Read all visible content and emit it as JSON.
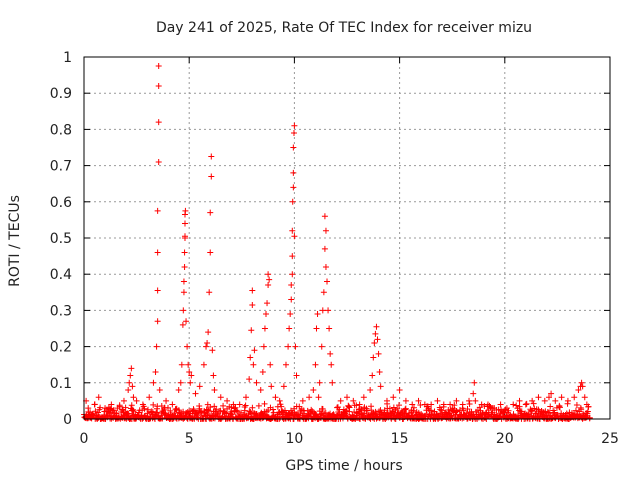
{
  "chart_data": {
    "type": "scatter",
    "title": "Day 241 of 2025, Rate Of TEC Index for receiver mizu",
    "xlabel": "GPS time / hours",
    "ylabel": "ROTI / TECUs",
    "xlim": [
      0,
      25
    ],
    "ylim": [
      0,
      1
    ],
    "grid": true,
    "marker": "+",
    "series_color": "#ff0000",
    "x_ticks": [
      0,
      5,
      10,
      15,
      20,
      25
    ],
    "y_ticks": [
      0,
      0.1,
      0.2,
      0.3,
      0.4,
      0.5,
      0.6,
      0.7,
      0.8,
      0.9,
      1
    ],
    "x_tick_labels": [
      "0",
      "5",
      "10",
      "15",
      "20",
      "25"
    ],
    "y_tick_labels": [
      "0",
      "0.1",
      "0.2",
      "0.3",
      "0.4",
      "0.5",
      "0.6",
      "0.7",
      "0.8",
      "0.9",
      "1"
    ],
    "series": [
      {
        "name": "ROTI",
        "points": [
          [
            0.1,
            0.05
          ],
          [
            0.2,
            0.03
          ],
          [
            0.5,
            0.04
          ],
          [
            0.7,
            0.06
          ],
          [
            1.0,
            0.03
          ],
          [
            1.3,
            0.04
          ],
          [
            1.6,
            0.03
          ],
          [
            1.9,
            0.05
          ],
          [
            2.1,
            0.08
          ],
          [
            2.15,
            0.1
          ],
          [
            2.2,
            0.12
          ],
          [
            2.25,
            0.14
          ],
          [
            2.3,
            0.09
          ],
          [
            2.35,
            0.06
          ],
          [
            2.5,
            0.05
          ],
          [
            2.8,
            0.04
          ],
          [
            3.1,
            0.06
          ],
          [
            3.3,
            0.1
          ],
          [
            3.4,
            0.13
          ],
          [
            3.45,
            0.2
          ],
          [
            3.5,
            0.27
          ],
          [
            3.5,
            0.355
          ],
          [
            3.5,
            0.46
          ],
          [
            3.5,
            0.575
          ],
          [
            3.55,
            0.71
          ],
          [
            3.55,
            0.82
          ],
          [
            3.55,
            0.92
          ],
          [
            3.55,
            0.975
          ],
          [
            3.6,
            0.08
          ],
          [
            3.9,
            0.05
          ],
          [
            4.2,
            0.04
          ],
          [
            4.5,
            0.08
          ],
          [
            4.6,
            0.1
          ],
          [
            4.65,
            0.15
          ],
          [
            4.7,
            0.26
          ],
          [
            4.72,
            0.3
          ],
          [
            4.75,
            0.35
          ],
          [
            4.75,
            0.38
          ],
          [
            4.78,
            0.42
          ],
          [
            4.78,
            0.46
          ],
          [
            4.8,
            0.5
          ],
          [
            4.8,
            0.505
          ],
          [
            4.8,
            0.54
          ],
          [
            4.8,
            0.565
          ],
          [
            4.82,
            0.575
          ],
          [
            4.85,
            0.27
          ],
          [
            4.9,
            0.2
          ],
          [
            4.95,
            0.15
          ],
          [
            5.0,
            0.13
          ],
          [
            5.05,
            0.1
          ],
          [
            5.1,
            0.12
          ],
          [
            5.3,
            0.07
          ],
          [
            5.5,
            0.09
          ],
          [
            5.7,
            0.15
          ],
          [
            5.8,
            0.2
          ],
          [
            5.85,
            0.21
          ],
          [
            5.9,
            0.24
          ],
          [
            5.95,
            0.35
          ],
          [
            6.0,
            0.46
          ],
          [
            6.0,
            0.57
          ],
          [
            6.05,
            0.67
          ],
          [
            6.05,
            0.725
          ],
          [
            6.1,
            0.19
          ],
          [
            6.15,
            0.12
          ],
          [
            6.2,
            0.08
          ],
          [
            6.5,
            0.06
          ],
          [
            6.8,
            0.05
          ],
          [
            7.1,
            0.04
          ],
          [
            7.4,
            0.04
          ],
          [
            7.7,
            0.06
          ],
          [
            7.85,
            0.11
          ],
          [
            7.9,
            0.17
          ],
          [
            7.95,
            0.245
          ],
          [
            8.0,
            0.315
          ],
          [
            8.0,
            0.355
          ],
          [
            8.05,
            0.15
          ],
          [
            8.1,
            0.19
          ],
          [
            8.2,
            0.1
          ],
          [
            8.4,
            0.08
          ],
          [
            8.5,
            0.13
          ],
          [
            8.55,
            0.2
          ],
          [
            8.6,
            0.25
          ],
          [
            8.65,
            0.29
          ],
          [
            8.7,
            0.32
          ],
          [
            8.75,
            0.37
          ],
          [
            8.75,
            0.4
          ],
          [
            8.8,
            0.385
          ],
          [
            8.85,
            0.15
          ],
          [
            8.9,
            0.09
          ],
          [
            9.1,
            0.06
          ],
          [
            9.3,
            0.05
          ],
          [
            9.5,
            0.09
          ],
          [
            9.6,
            0.15
          ],
          [
            9.7,
            0.2
          ],
          [
            9.75,
            0.25
          ],
          [
            9.8,
            0.29
          ],
          [
            9.85,
            0.33
          ],
          [
            9.85,
            0.37
          ],
          [
            9.9,
            0.4
          ],
          [
            9.9,
            0.45
          ],
          [
            9.9,
            0.52
          ],
          [
            9.92,
            0.6
          ],
          [
            9.95,
            0.64
          ],
          [
            9.95,
            0.68
          ],
          [
            9.95,
            0.75
          ],
          [
            9.98,
            0.79
          ],
          [
            10.0,
            0.81
          ],
          [
            10.0,
            0.505
          ],
          [
            10.05,
            0.2
          ],
          [
            10.1,
            0.12
          ],
          [
            10.4,
            0.05
          ],
          [
            10.7,
            0.06
          ],
          [
            10.9,
            0.08
          ],
          [
            11.0,
            0.15
          ],
          [
            11.05,
            0.25
          ],
          [
            11.1,
            0.29
          ],
          [
            11.15,
            0.06
          ],
          [
            11.2,
            0.1
          ],
          [
            11.3,
            0.2
          ],
          [
            11.35,
            0.3
          ],
          [
            11.4,
            0.35
          ],
          [
            11.45,
            0.47
          ],
          [
            11.45,
            0.56
          ],
          [
            11.5,
            0.52
          ],
          [
            11.5,
            0.42
          ],
          [
            11.55,
            0.38
          ],
          [
            11.6,
            0.3
          ],
          [
            11.65,
            0.25
          ],
          [
            11.7,
            0.18
          ],
          [
            11.75,
            0.15
          ],
          [
            11.8,
            0.1
          ],
          [
            12.2,
            0.05
          ],
          [
            12.5,
            0.06
          ],
          [
            12.8,
            0.05
          ],
          [
            13.1,
            0.04
          ],
          [
            13.3,
            0.06
          ],
          [
            13.6,
            0.08
          ],
          [
            13.7,
            0.12
          ],
          [
            13.75,
            0.17
          ],
          [
            13.8,
            0.21
          ],
          [
            13.85,
            0.235
          ],
          [
            13.9,
            0.255
          ],
          [
            13.95,
            0.22
          ],
          [
            14.0,
            0.18
          ],
          [
            14.05,
            0.13
          ],
          [
            14.1,
            0.09
          ],
          [
            14.4,
            0.05
          ],
          [
            14.7,
            0.06
          ],
          [
            15.0,
            0.08
          ],
          [
            15.3,
            0.05
          ],
          [
            15.6,
            0.04
          ],
          [
            15.9,
            0.05
          ],
          [
            16.2,
            0.04
          ],
          [
            16.5,
            0.04
          ],
          [
            16.8,
            0.05
          ],
          [
            17.1,
            0.04
          ],
          [
            17.4,
            0.04
          ],
          [
            17.7,
            0.05
          ],
          [
            18.0,
            0.04
          ],
          [
            18.3,
            0.05
          ],
          [
            18.5,
            0.07
          ],
          [
            18.55,
            0.1
          ],
          [
            18.6,
            0.05
          ],
          [
            18.9,
            0.04
          ],
          [
            19.2,
            0.04
          ],
          [
            19.5,
            0.03
          ],
          [
            19.8,
            0.04
          ],
          [
            20.1,
            0.03
          ],
          [
            20.4,
            0.04
          ],
          [
            20.7,
            0.05
          ],
          [
            21.0,
            0.04
          ],
          [
            21.3,
            0.05
          ],
          [
            21.6,
            0.06
          ],
          [
            21.9,
            0.05
          ],
          [
            22.1,
            0.06
          ],
          [
            22.2,
            0.07
          ],
          [
            22.4,
            0.05
          ],
          [
            22.7,
            0.06
          ],
          [
            23.0,
            0.05
          ],
          [
            23.3,
            0.06
          ],
          [
            23.5,
            0.08
          ],
          [
            23.6,
            0.09
          ],
          [
            23.65,
            0.1
          ],
          [
            23.7,
            0.09
          ],
          [
            23.8,
            0.06
          ],
          [
            23.9,
            0.04
          ]
        ]
      }
    ]
  }
}
